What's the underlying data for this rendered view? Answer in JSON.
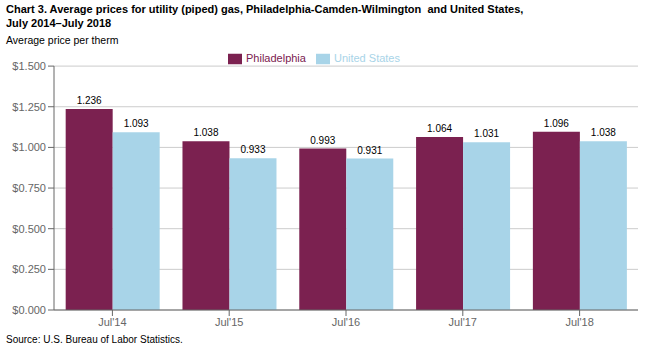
{
  "chart_data": {
    "type": "bar",
    "title": "Chart 3. Average prices for utility (piped) gas, Philadelphia-Camden-Wilmington  and United States,\nJuly 2014–July 2018",
    "ylabel": "Average price per therm",
    "source": "Source: U.S. Bureau of Labor Statistics.",
    "categories": [
      "Jul'14",
      "Jul'15",
      "Jul'16",
      "Jul'17",
      "Jul'18"
    ],
    "series": [
      {
        "name": "Philadelphia",
        "color": "#7B2150",
        "values": [
          1.236,
          1.038,
          0.993,
          1.064,
          1.096
        ]
      },
      {
        "name": "United States",
        "color": "#A8D4E8",
        "values": [
          1.093,
          0.933,
          0.931,
          1.031,
          1.038
        ]
      }
    ],
    "ylim": [
      0.0,
      1.5
    ],
    "yticks": [
      {
        "value": 0.0,
        "label": "$0.000"
      },
      {
        "value": 0.25,
        "label": "$0.250"
      },
      {
        "value": 0.5,
        "label": "$0.500"
      },
      {
        "value": 0.75,
        "label": "$0.750"
      },
      {
        "value": 1.0,
        "label": "$1.000"
      },
      {
        "value": 1.25,
        "label": "$1.250"
      },
      {
        "value": 1.5,
        "label": "$1.500"
      }
    ],
    "grid": true,
    "legend": "upper center",
    "data_labels": true
  }
}
